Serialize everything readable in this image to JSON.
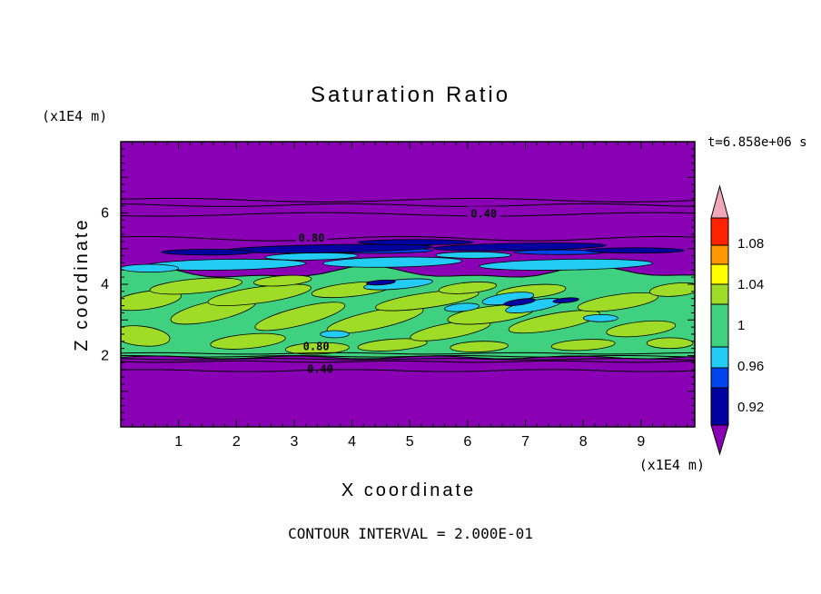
{
  "chart_data": {
    "type": "contour",
    "title": "Saturation Ratio",
    "xlabel": "X coordinate",
    "ylabel": "Z coordinate",
    "x_unit_label": "(x1E4 m)",
    "z_unit_label": "(x1E4 m)",
    "time_label": "t=6.858e+06 s",
    "contour_interval_label": "CONTOUR INTERVAL = 2.000E-01",
    "contour_interval": 0.2,
    "x_ticks": [
      "1",
      "2",
      "3",
      "4",
      "5",
      "6",
      "7",
      "8",
      "9"
    ],
    "z_ticks": [
      "2",
      "4",
      "6"
    ],
    "x_range": [
      0,
      9.93
    ],
    "z_range": [
      0,
      8.0
    ],
    "grid": false,
    "colors": {
      "purple": "#8a00b4",
      "navy": "#0000a0",
      "blue": "#0044ee",
      "cyan": "#22ccf5",
      "green": "#3fd080",
      "yellowgreen": "#9fdc27",
      "yellow": "#ffff00",
      "orange": "#ff9800",
      "red": "#ff2200",
      "pink": "#f0a8b8"
    },
    "colorbar": {
      "position": "right",
      "tick_labels": [
        "1.08",
        "1.04",
        "1",
        "0.96",
        "0.92"
      ],
      "order_bottom_to_top": [
        "purple",
        "navy",
        "blue",
        "cyan",
        "green",
        "yellowgreen",
        "yellow",
        "orange",
        "red",
        "pink"
      ]
    },
    "contour_labels": [
      {
        "text": "0.40",
        "x": 6.28,
        "z": 5.98,
        "bg": true
      },
      {
        "text": "0.80",
        "x": 3.3,
        "z": 5.3,
        "bg": true
      },
      {
        "text": "0.80",
        "x": 3.38,
        "z": 2.26,
        "bg": false
      },
      {
        "text": "0.40",
        "x": 3.45,
        "z": 1.62,
        "bg": false
      }
    ],
    "field": {
      "background": "purple",
      "band": {
        "color": "green",
        "top_z": 4.32,
        "bottom_z": 1.95
      },
      "blobs": [
        [
          0.45,
          3.55,
          1.2,
          0.5,
          -8,
          "yellowgreen"
        ],
        [
          0.35,
          2.55,
          1.0,
          0.55,
          6,
          "yellowgreen"
        ],
        [
          1.3,
          3.95,
          1.6,
          0.4,
          -5,
          "yellowgreen"
        ],
        [
          1.6,
          3.25,
          1.5,
          0.55,
          -12,
          "yellowgreen"
        ],
        [
          2.4,
          3.7,
          1.8,
          0.45,
          -8,
          "yellowgreen"
        ],
        [
          2.2,
          2.4,
          1.3,
          0.4,
          -5,
          "yellowgreen"
        ],
        [
          3.1,
          3.1,
          1.6,
          0.5,
          -14,
          "yellowgreen"
        ],
        [
          3.4,
          2.2,
          1.1,
          0.32,
          -2,
          "yellowgreen"
        ],
        [
          4.0,
          3.85,
          1.4,
          0.38,
          -6,
          "yellowgreen"
        ],
        [
          4.4,
          3.0,
          1.7,
          0.5,
          -12,
          "yellowgreen"
        ],
        [
          4.7,
          2.3,
          1.2,
          0.32,
          -4,
          "yellowgreen"
        ],
        [
          5.3,
          3.55,
          1.8,
          0.42,
          -8,
          "yellowgreen"
        ],
        [
          5.7,
          2.7,
          1.4,
          0.42,
          -10,
          "yellowgreen"
        ],
        [
          6.4,
          3.15,
          1.5,
          0.46,
          -7,
          "yellowgreen"
        ],
        [
          6.2,
          2.25,
          1.0,
          0.3,
          -2,
          "yellowgreen"
        ],
        [
          7.1,
          3.8,
          1.2,
          0.36,
          -5,
          "yellowgreen"
        ],
        [
          7.5,
          2.95,
          1.6,
          0.46,
          -10,
          "yellowgreen"
        ],
        [
          8.0,
          2.3,
          1.1,
          0.3,
          -3,
          "yellowgreen"
        ],
        [
          8.6,
          3.5,
          1.4,
          0.42,
          -8,
          "yellowgreen"
        ],
        [
          9.0,
          2.75,
          1.2,
          0.4,
          -6,
          "yellowgreen"
        ],
        [
          9.6,
          3.85,
          0.9,
          0.36,
          -5,
          "yellowgreen"
        ],
        [
          9.5,
          2.35,
          0.8,
          0.3,
          0,
          "yellowgreen"
        ],
        [
          2.8,
          4.1,
          1.0,
          0.28,
          -4,
          "yellowgreen"
        ],
        [
          6.0,
          3.9,
          1.0,
          0.3,
          -5,
          "yellowgreen"
        ],
        [
          4.8,
          4.0,
          1.2,
          0.26,
          -5,
          "cyan"
        ],
        [
          6.7,
          3.6,
          0.9,
          0.3,
          -8,
          "cyan"
        ],
        [
          7.15,
          3.4,
          1.0,
          0.3,
          -10,
          "cyan"
        ],
        [
          8.3,
          3.05,
          0.6,
          0.2,
          0,
          "cyan"
        ],
        [
          3.7,
          2.6,
          0.5,
          0.2,
          0,
          "cyan"
        ],
        [
          5.9,
          3.35,
          0.6,
          0.22,
          -5,
          "cyan"
        ],
        [
          6.9,
          3.5,
          0.55,
          0.16,
          -8,
          "navy"
        ],
        [
          7.7,
          3.55,
          0.45,
          0.13,
          -5,
          "navy"
        ],
        [
          4.5,
          4.05,
          0.5,
          0.13,
          -4,
          "navy"
        ],
        [
          1.8,
          4.55,
          2.8,
          0.3,
          -1,
          "cyan"
        ],
        [
          4.7,
          4.62,
          2.4,
          0.28,
          -1,
          "cyan"
        ],
        [
          7.7,
          4.55,
          3.0,
          0.3,
          -1,
          "cyan"
        ],
        [
          0.5,
          4.45,
          1.0,
          0.22,
          0,
          "cyan"
        ],
        [
          3.3,
          4.78,
          1.6,
          0.2,
          -1,
          "cyan"
        ],
        [
          6.1,
          4.82,
          1.3,
          0.18,
          0,
          "cyan"
        ],
        [
          4.3,
          4.95,
          2.2,
          0.16,
          0,
          "blue"
        ],
        [
          7.6,
          4.9,
          1.6,
          0.13,
          0,
          "blue"
        ],
        [
          3.6,
          5.0,
          3.6,
          0.22,
          -1,
          "navy"
        ],
        [
          6.9,
          5.05,
          3.0,
          0.2,
          -1,
          "navy"
        ],
        [
          1.5,
          4.9,
          1.6,
          0.16,
          0,
          "navy"
        ],
        [
          5.1,
          5.18,
          2.0,
          0.15,
          0,
          "navy"
        ],
        [
          8.9,
          4.95,
          1.7,
          0.15,
          0,
          "navy"
        ]
      ],
      "lines": [
        {
          "z": 6.36,
          "amp": 0.05,
          "freq": 1.2,
          "phase": 0.5
        },
        {
          "z": 6.22,
          "amp": 0.04,
          "freq": 1.5,
          "phase": 2.0
        },
        {
          "z": 5.96,
          "amp": 0.05,
          "freq": 1.1,
          "phase": 4.0
        },
        {
          "z": 5.28,
          "amp": 0.06,
          "freq": 1.4,
          "phase": 1.0
        },
        {
          "z": 2.06,
          "amp": 0.02,
          "freq": 2.0,
          "phase": 0.3
        },
        {
          "z": 1.98,
          "amp": 0.02,
          "freq": 2.2,
          "phase": 1.3
        },
        {
          "z": 1.9,
          "amp": 0.02,
          "freq": 2.1,
          "phase": 2.3
        },
        {
          "z": 1.83,
          "amp": 0.02,
          "freq": 2.3,
          "phase": 3.1
        },
        {
          "z": 1.58,
          "amp": 0.03,
          "freq": 1.8,
          "phase": 0.8
        }
      ]
    }
  }
}
